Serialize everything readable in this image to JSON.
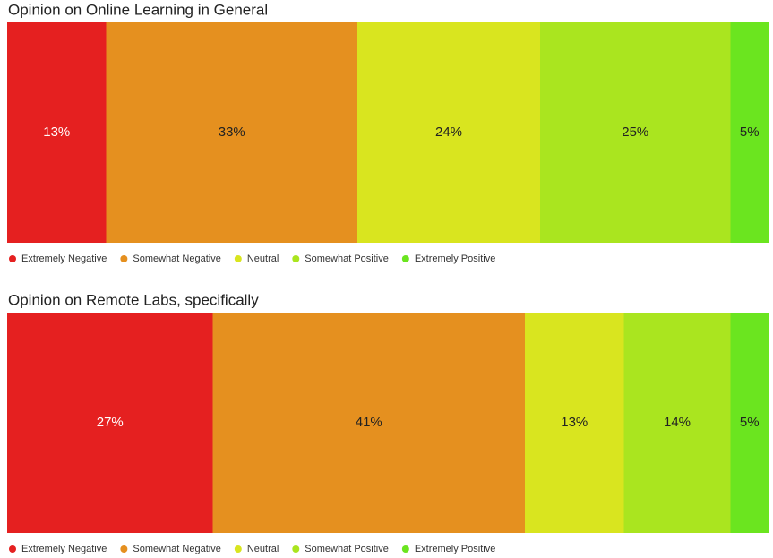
{
  "chart_data": [
    {
      "type": "stacked_bar",
      "title": "Opinion on Online Learning in General",
      "xlim": [
        0,
        100
      ],
      "series": [
        {
          "name": "Extremely Negative",
          "color": "#e52020",
          "values": [
            13
          ],
          "value_labels": [
            "13%"
          ]
        },
        {
          "name": "Somewhat Negative",
          "color": "#e5901f",
          "values": [
            33
          ],
          "value_labels": [
            "33%"
          ]
        },
        {
          "name": "Neutral",
          "color": "#d9e51f",
          "values": [
            24
          ],
          "value_labels": [
            "24%"
          ]
        },
        {
          "name": "Somewhat Positive",
          "color": "#aae51f",
          "values": [
            25
          ],
          "value_labels": [
            "25%"
          ]
        },
        {
          "name": "Extremely Positive",
          "color": "#6be51f",
          "values": [
            5
          ],
          "value_labels": [
            "5%"
          ]
        }
      ]
    },
    {
      "type": "stacked_bar",
      "title": "Opinion on Remote Labs, specifically",
      "xlim": [
        0,
        100
      ],
      "series": [
        {
          "name": "Extremely Negative",
          "color": "#e52020",
          "values": [
            27
          ],
          "value_labels": [
            "27%"
          ]
        },
        {
          "name": "Somewhat Negative",
          "color": "#e5901f",
          "values": [
            41
          ],
          "value_labels": [
            "41%"
          ]
        },
        {
          "name": "Neutral",
          "color": "#d9e51f",
          "values": [
            13
          ],
          "value_labels": [
            "13%"
          ]
        },
        {
          "name": "Somewhat Positive",
          "color": "#aae51f",
          "values": [
            14
          ],
          "value_labels": [
            "14%"
          ]
        },
        {
          "name": "Extremely Positive",
          "color": "#6be51f",
          "values": [
            5
          ],
          "value_labels": [
            "5%"
          ]
        }
      ]
    }
  ]
}
